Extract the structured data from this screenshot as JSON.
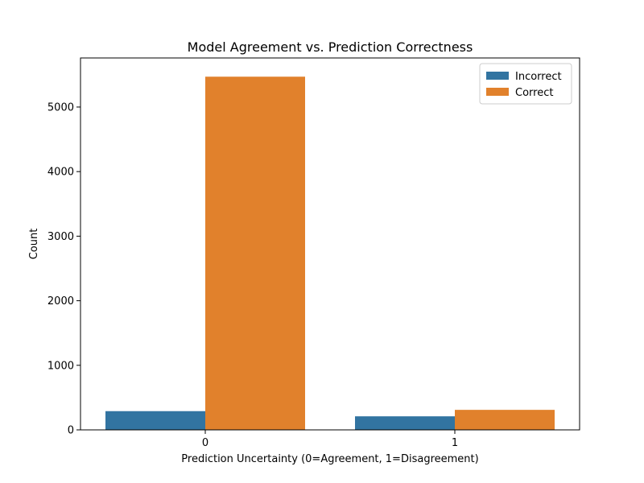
{
  "chart_data": {
    "type": "bar",
    "title": "Model Agreement vs. Prediction Correctness",
    "xlabel": "Prediction Uncertainty (0=Agreement, 1=Disagreement)",
    "ylabel": "Count",
    "categories": [
      "0",
      "1"
    ],
    "series": [
      {
        "name": "Incorrect",
        "color": "#3274a1",
        "values": [
          290,
          210
        ]
      },
      {
        "name": "Correct",
        "color": "#e1812c",
        "values": [
          5470,
          310
        ]
      }
    ],
    "ylim": [
      0,
      5760
    ],
    "yticks": [
      0,
      1000,
      2000,
      3000,
      4000,
      5000
    ],
    "legend_position": "top-right",
    "grid": false
  }
}
